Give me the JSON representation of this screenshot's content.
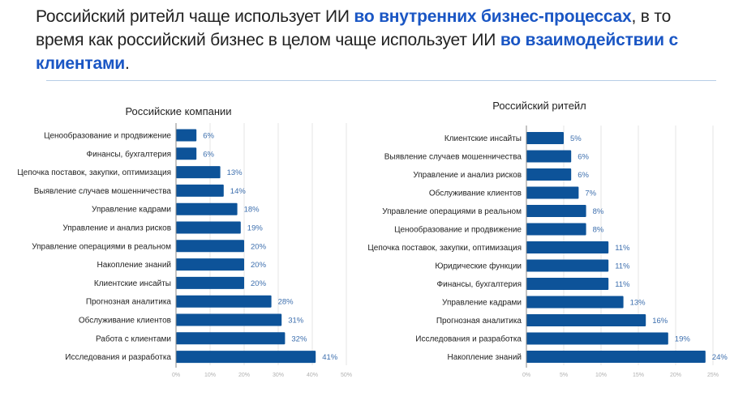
{
  "headline": {
    "part1": "Российский ритейл чаще использует ИИ ",
    "highlight1": "во внутренних бизнес-процессах",
    "part2": ", в то время как российский бизнес в целом чаще использует ИИ ",
    "highlight2": "во взаимодействии с клиентами",
    "part3": "."
  },
  "colors": {
    "bar": "#0d5399",
    "value_label": "#3d6fae",
    "highlight": "#1a56c4",
    "gridline": "#e6e6e6",
    "axis": "#888888"
  },
  "chart_data": [
    {
      "type": "bar",
      "orientation": "horizontal",
      "title": "Российские компании",
      "xlabel": "",
      "ylabel": "",
      "xlim": [
        0,
        50
      ],
      "ticks": [
        0,
        10,
        20,
        30,
        40,
        50
      ],
      "tick_labels": [
        "0%",
        "10%",
        "20%",
        "30%",
        "40%",
        "50%"
      ],
      "grid": true,
      "categories": [
        "Ценообразование и продвижение",
        "Финансы, бухгалтерия",
        "Цепочка поставок, закупки, оптимизация",
        "Выявление случаев мошенничества",
        "Управление кадрами",
        "Управление и анализ рисков",
        "Управление операциями в реальном",
        "Накопление знаний",
        "Клиентские инсайты",
        "Прогнозная аналитика",
        "Обслуживание клиентов",
        "Работа с клиентами",
        "Исследования и разработка"
      ],
      "values": [
        6,
        6,
        13,
        14,
        18,
        19,
        20,
        20,
        20,
        28,
        31,
        32,
        41
      ],
      "value_labels": [
        "6%",
        "6%",
        "13%",
        "14%",
        "18%",
        "19%",
        "20%",
        "20%",
        "20%",
        "28%",
        "31%",
        "32%",
        "41%"
      ]
    },
    {
      "type": "bar",
      "orientation": "horizontal",
      "title": "Российский ритейл",
      "xlabel": "",
      "ylabel": "",
      "xlim": [
        0,
        25
      ],
      "ticks": [
        0,
        5,
        10,
        15,
        20,
        25
      ],
      "tick_labels": [
        "0%",
        "5%",
        "10%",
        "15%",
        "20%",
        "25%"
      ],
      "grid": true,
      "categories": [
        "Клиентские инсайты",
        "Выявление случаев мошенничества",
        "Управление и анализ рисков",
        "Обслуживание клиентов",
        "Управление операциями в реальном",
        "Ценообразование и продвижение",
        "Цепочка поставок, закупки, оптимизация",
        "Юридические функции",
        "Финансы, бухгалтерия",
        "Управление кадрами",
        "Прогнозная аналитика",
        "Исследования и разработка",
        "Накопление знаний"
      ],
      "values": [
        5,
        6,
        6,
        7,
        8,
        8,
        11,
        11,
        11,
        13,
        16,
        19,
        24
      ],
      "value_labels": [
        "5%",
        "6%",
        "6%",
        "7%",
        "8%",
        "8%",
        "11%",
        "11%",
        "11%",
        "13%",
        "16%",
        "19%",
        "24%"
      ]
    }
  ]
}
